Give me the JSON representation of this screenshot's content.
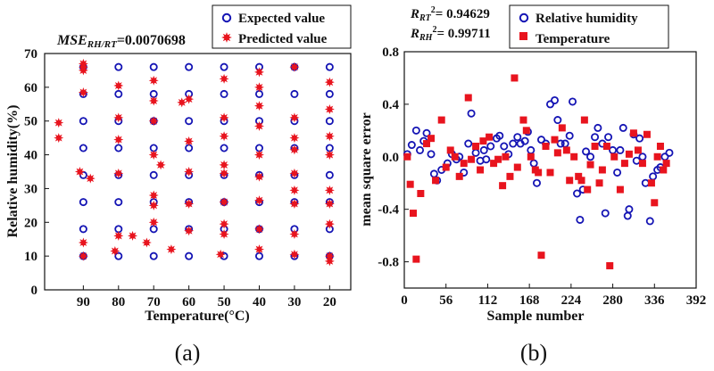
{
  "colors": {
    "expected": "#1414b4",
    "predicted": "#e8141e",
    "axis": "#111111"
  },
  "panel_labels": {
    "a": "(a)",
    "b": "(b)"
  },
  "chart_data": [
    {
      "type": "scatter",
      "panel": "(a)",
      "annotation": {
        "main": "MSE",
        "sub": "RH/RT",
        "rest": "=0.0070698"
      },
      "xlabel": "Temperature(°C)",
      "ylabel": "Relative humidity(%)",
      "x_reversed": true,
      "xlim": [
        14,
        101
      ],
      "ylim": [
        0,
        70
      ],
      "xticks": [
        90,
        80,
        70,
        60,
        50,
        40,
        30,
        20
      ],
      "yticks": [
        0,
        10,
        20,
        30,
        40,
        50,
        60,
        70
      ],
      "legend": {
        "position": "top-right"
      },
      "series": [
        {
          "name": "Expected value",
          "marker": "circle",
          "points": [
            [
              90,
              10
            ],
            [
              90,
              18
            ],
            [
              90,
              26
            ],
            [
              90,
              34
            ],
            [
              90,
              42
            ],
            [
              90,
              50
            ],
            [
              90,
              58
            ],
            [
              90,
              66
            ],
            [
              80,
              10
            ],
            [
              80,
              18
            ],
            [
              80,
              26
            ],
            [
              80,
              34
            ],
            [
              80,
              42
            ],
            [
              80,
              50
            ],
            [
              80,
              58
            ],
            [
              80,
              66
            ],
            [
              70,
              10
            ],
            [
              70,
              18
            ],
            [
              70,
              26
            ],
            [
              70,
              34
            ],
            [
              70,
              42
            ],
            [
              70,
              50
            ],
            [
              70,
              58
            ],
            [
              70,
              66
            ],
            [
              60,
              10
            ],
            [
              60,
              18
            ],
            [
              60,
              26
            ],
            [
              60,
              34
            ],
            [
              60,
              42
            ],
            [
              60,
              50
            ],
            [
              60,
              58
            ],
            [
              60,
              66
            ],
            [
              50,
              10
            ],
            [
              50,
              18
            ],
            [
              50,
              26
            ],
            [
              50,
              34
            ],
            [
              50,
              42
            ],
            [
              50,
              50
            ],
            [
              50,
              58
            ],
            [
              50,
              66
            ],
            [
              40,
              10
            ],
            [
              40,
              18
            ],
            [
              40,
              26
            ],
            [
              40,
              34
            ],
            [
              40,
              42
            ],
            [
              40,
              50
            ],
            [
              40,
              58
            ],
            [
              40,
              66
            ],
            [
              30,
              10
            ],
            [
              30,
              18
            ],
            [
              30,
              26
            ],
            [
              30,
              34
            ],
            [
              30,
              42
            ],
            [
              30,
              50
            ],
            [
              30,
              58
            ],
            [
              30,
              66
            ],
            [
              20,
              10
            ],
            [
              20,
              18
            ],
            [
              20,
              26
            ],
            [
              20,
              34
            ],
            [
              20,
              42
            ],
            [
              20,
              50
            ],
            [
              20,
              58
            ],
            [
              20,
              66
            ]
          ]
        },
        {
          "name": "Predicted value",
          "marker": "star",
          "points": [
            [
              97,
              49.5
            ],
            [
              97,
              45
            ],
            [
              91,
              35
            ],
            [
              90,
              58.5
            ],
            [
              90,
              65
            ],
            [
              90,
              66
            ],
            [
              90,
              67
            ],
            [
              90,
              14
            ],
            [
              90,
              10
            ],
            [
              88,
              33
            ],
            [
              81,
              11.5
            ],
            [
              80,
              16
            ],
            [
              80,
              34.5
            ],
            [
              80,
              44.5
            ],
            [
              80,
              51
            ],
            [
              80,
              60.5
            ],
            [
              76,
              16
            ],
            [
              72,
              14
            ],
            [
              70,
              20
            ],
            [
              70,
              25
            ],
            [
              70,
              28
            ],
            [
              70,
              40
            ],
            [
              70,
              50
            ],
            [
              70,
              56
            ],
            [
              70,
              62
            ],
            [
              68,
              37
            ],
            [
              65,
              12
            ],
            [
              62,
              55.5
            ],
            [
              60,
              17.5
            ],
            [
              60,
              25.5
            ],
            [
              60,
              35
            ],
            [
              60,
              44
            ],
            [
              60,
              56.5
            ],
            [
              51,
              10.5
            ],
            [
              50,
              16.5
            ],
            [
              50,
              19.5
            ],
            [
              50,
              26
            ],
            [
              50,
              34.5
            ],
            [
              50,
              37
            ],
            [
              50,
              45.5
            ],
            [
              50,
              51
            ],
            [
              50,
              62.5
            ],
            [
              40,
              12
            ],
            [
              40,
              18
            ],
            [
              40,
              26.5
            ],
            [
              40,
              33.5
            ],
            [
              40,
              40
            ],
            [
              40,
              48.5
            ],
            [
              40,
              54.5
            ],
            [
              40,
              60
            ],
            [
              40,
              64.5
            ],
            [
              30,
              10.5
            ],
            [
              30,
              16.5
            ],
            [
              30,
              25.5
            ],
            [
              30,
              29.5
            ],
            [
              30,
              34.5
            ],
            [
              30,
              41.5
            ],
            [
              30,
              45
            ],
            [
              30,
              51
            ],
            [
              30,
              66
            ],
            [
              20,
              8.5
            ],
            [
              20,
              10
            ],
            [
              20,
              19.5
            ],
            [
              20,
              25.5
            ],
            [
              20,
              29.5
            ],
            [
              20,
              40
            ],
            [
              20,
              45.5
            ],
            [
              20,
              53.5
            ],
            [
              20,
              61.5
            ]
          ]
        }
      ]
    },
    {
      "type": "scatter",
      "panel": "(b)",
      "annotations": [
        {
          "main": "R",
          "sub": "RT",
          "sup": "2",
          "rest": "= 0.94629"
        },
        {
          "main": "R",
          "sub": "RH",
          "sup": "2",
          "rest": "= 0.99711"
        }
      ],
      "xlabel": "Sample number",
      "ylabel": "mean square error",
      "xlim": [
        0,
        392
      ],
      "ylim": [
        -1.0,
        0.8
      ],
      "xticks": [
        0,
        56,
        112,
        168,
        224,
        280,
        336,
        392
      ],
      "yticks": [
        -0.8,
        -0.4,
        0.0,
        0.4,
        0.8
      ],
      "ytick_labels": [
        "-0.8",
        "-0.4",
        "0.0",
        "0.4",
        "0.8"
      ],
      "legend": {
        "position": "top-left"
      },
      "series": [
        {
          "name": "Relative humidity",
          "marker": "circle",
          "points": [
            [
              4,
              0.02
            ],
            [
              10,
              0.09
            ],
            [
              16,
              0.2
            ],
            [
              21,
              0.05
            ],
            [
              26,
              0.12
            ],
            [
              30,
              0.18
            ],
            [
              36,
              0.02
            ],
            [
              40,
              -0.13
            ],
            [
              44,
              -0.18
            ],
            [
              50,
              -0.1
            ],
            [
              58,
              -0.05
            ],
            [
              64,
              0.02
            ],
            [
              70,
              -0.02
            ],
            [
              74,
              0.0
            ],
            [
              80,
              -0.12
            ],
            [
              86,
              0.1
            ],
            [
              90,
              0.33
            ],
            [
              96,
              0.03
            ],
            [
              102,
              -0.03
            ],
            [
              107,
              0.05
            ],
            [
              110,
              -0.02
            ],
            [
              116,
              0.08
            ],
            [
              124,
              0.14
            ],
            [
              128,
              0.16
            ],
            [
              134,
              0.08
            ],
            [
              140,
              0.02
            ],
            [
              146,
              0.1
            ],
            [
              152,
              0.15
            ],
            [
              156,
              0.1
            ],
            [
              162,
              0.12
            ],
            [
              166,
              0.19
            ],
            [
              170,
              0.05
            ],
            [
              174,
              -0.05
            ],
            [
              178,
              -0.2
            ],
            [
              184,
              0.13
            ],
            [
              190,
              0.1
            ],
            [
              196,
              0.4
            ],
            [
              202,
              0.43
            ],
            [
              206,
              0.28
            ],
            [
              210,
              0.1
            ],
            [
              216,
              0.1
            ],
            [
              222,
              0.16
            ],
            [
              226,
              0.42
            ],
            [
              232,
              -0.28
            ],
            [
              236,
              -0.48
            ],
            [
              240,
              -0.25
            ],
            [
              244,
              0.04
            ],
            [
              250,
              0.0
            ],
            [
              256,
              0.15
            ],
            [
              260,
              0.22
            ],
            [
              266,
              0.1
            ],
            [
              270,
              -0.43
            ],
            [
              274,
              0.15
            ],
            [
              280,
              0.05
            ],
            [
              286,
              -0.12
            ],
            [
              290,
              0.05
            ],
            [
              294,
              0.22
            ],
            [
              300,
              -0.45
            ],
            [
              302,
              -0.4
            ],
            [
              308,
              0.17
            ],
            [
              312,
              -0.03
            ],
            [
              316,
              0.14
            ],
            [
              320,
              0.0
            ],
            [
              324,
              -0.2
            ],
            [
              330,
              -0.49
            ],
            [
              334,
              -0.15
            ],
            [
              340,
              -0.1
            ],
            [
              344,
              -0.08
            ],
            [
              350,
              0.0
            ],
            [
              356,
              0.03
            ]
          ]
        },
        {
          "name": "Temperature",
          "marker": "square",
          "points": [
            [
              4,
              0.0
            ],
            [
              8,
              -0.21
            ],
            [
              12,
              -0.43
            ],
            [
              16,
              -0.78
            ],
            [
              22,
              -0.28
            ],
            [
              30,
              0.1
            ],
            [
              36,
              0.14
            ],
            [
              42,
              -0.18
            ],
            [
              50,
              0.28
            ],
            [
              56,
              -0.08
            ],
            [
              62,
              0.05
            ],
            [
              68,
              0.0
            ],
            [
              74,
              -0.15
            ],
            [
              80,
              -0.05
            ],
            [
              86,
              0.45
            ],
            [
              90,
              -0.02
            ],
            [
              96,
              0.08
            ],
            [
              102,
              -0.1
            ],
            [
              106,
              0.12
            ],
            [
              114,
              0.15
            ],
            [
              120,
              -0.05
            ],
            [
              126,
              -0.02
            ],
            [
              132,
              -0.22
            ],
            [
              136,
              0.0
            ],
            [
              142,
              -0.15
            ],
            [
              148,
              0.6
            ],
            [
              152,
              -0.08
            ],
            [
              160,
              0.28
            ],
            [
              164,
              0.2
            ],
            [
              170,
              0.0
            ],
            [
              176,
              -0.1
            ],
            [
              180,
              -0.12
            ],
            [
              184,
              -0.75
            ],
            [
              190,
              0.08
            ],
            [
              196,
              -0.12
            ],
            [
              202,
              0.13
            ],
            [
              206,
              0.03
            ],
            [
              212,
              0.22
            ],
            [
              218,
              0.05
            ],
            [
              222,
              -0.18
            ],
            [
              228,
              0.0
            ],
            [
              234,
              -0.15
            ],
            [
              238,
              -0.18
            ],
            [
              242,
              0.28
            ],
            [
              246,
              -0.25
            ],
            [
              250,
              -0.06
            ],
            [
              256,
              0.08
            ],
            [
              262,
              -0.2
            ],
            [
              266,
              -0.1
            ],
            [
              272,
              0.08
            ],
            [
              276,
              -0.83
            ],
            [
              282,
              0.0
            ],
            [
              290,
              -0.25
            ],
            [
              296,
              -0.05
            ],
            [
              302,
              0.02
            ],
            [
              308,
              0.18
            ],
            [
              314,
              0.05
            ],
            [
              320,
              -0.05
            ],
            [
              326,
              0.17
            ],
            [
              332,
              -0.2
            ],
            [
              336,
              -0.35
            ],
            [
              340,
              0.0
            ],
            [
              344,
              0.08
            ],
            [
              348,
              -0.1
            ],
            [
              352,
              -0.05
            ]
          ]
        }
      ]
    }
  ]
}
